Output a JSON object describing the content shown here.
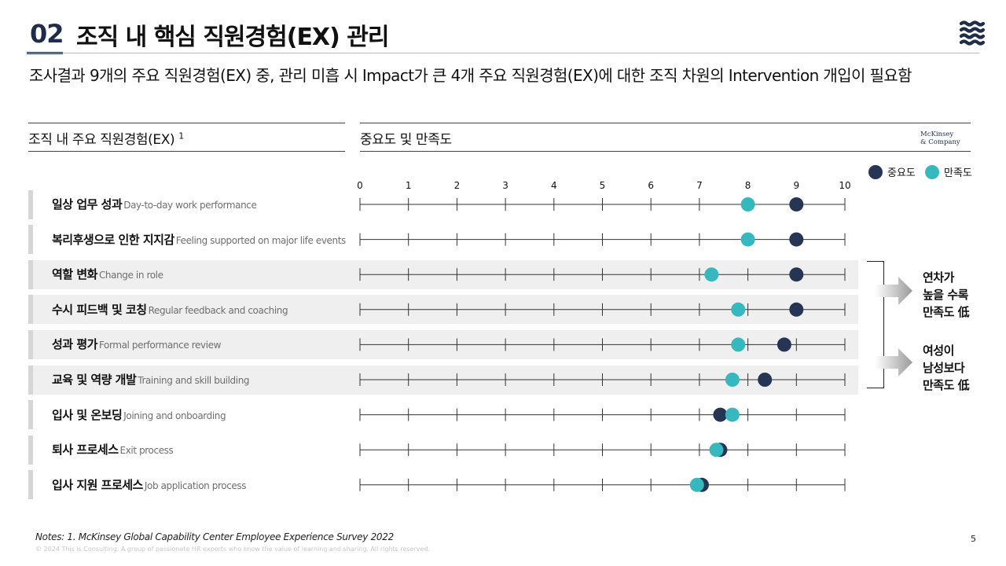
{
  "header": {
    "number": "02",
    "title": "조직 내 핵심 직원경험(EX) 관리",
    "subtitle": "조사결과 9개의 주요 직원경험(EX) 중, 관리 미흡 시 Impact가 큰 4개 주요 직원경험(EX)에 대한 조직 차원의 Intervention 개입이 필요함"
  },
  "columns": {
    "left_heading": "조직 내 주요 직원경험(EX)",
    "left_footnote": "1",
    "right_heading": "중요도 및 만족도",
    "source_logo_line1": "McKinsey",
    "source_logo_line2": "& Company"
  },
  "colors": {
    "importance": "#253553",
    "satisfaction": "#36b8bf",
    "highlight_bg": "#efefef"
  },
  "chart_data": {
    "type": "dot",
    "title": "중요도 및 만족도",
    "xlim": [
      0,
      10
    ],
    "ticks": [
      "0",
      "1",
      "2",
      "3",
      "4",
      "5",
      "6",
      "7",
      "8",
      "9",
      "10"
    ],
    "legend": [
      {
        "name": "중요도",
        "color": "#253553"
      },
      {
        "name": "만족도",
        "color": "#36b8bf"
      }
    ],
    "categories": [
      {
        "ko": "일상 업무 성과",
        "en": "Day-to-day work performance",
        "highlight": false
      },
      {
        "ko": "복리후생으로 인한 지지감",
        "en": "Feeling supported on major life events",
        "highlight": false
      },
      {
        "ko": "역할 변화",
        "en": "Change in role",
        "highlight": true
      },
      {
        "ko": "수시 피드백 및 코칭",
        "en": "Regular feedback and coaching",
        "highlight": true
      },
      {
        "ko": "성과 평가",
        "en": "Formal performance review",
        "highlight": true
      },
      {
        "ko": "교육 및 역량 개발",
        "en": "Training and skill building",
        "highlight": true
      },
      {
        "ko": "입사 및 온보딩",
        "en": "Joining and onboarding",
        "highlight": false
      },
      {
        "ko": "퇴사 프로세스",
        "en": "Exit process",
        "highlight": false
      },
      {
        "ko": "입사 지원 프로세스",
        "en": "Job application process",
        "highlight": false
      }
    ],
    "series": [
      {
        "name": "만족도",
        "values": [
          8.0,
          8.0,
          7.25,
          7.8,
          7.8,
          7.68,
          7.68,
          7.35,
          6.95
        ]
      },
      {
        "name": "중요도",
        "values": [
          9.0,
          9.0,
          9.0,
          9.0,
          8.75,
          8.35,
          7.43,
          7.43,
          7.05
        ]
      }
    ]
  },
  "annotations": {
    "group1": [
      "연차가",
      "높을 수록",
      "만족도 低"
    ],
    "group2": [
      "여성이",
      "남성보다",
      "만족도 低"
    ]
  },
  "footer": {
    "notes": "Notes: 1. McKinsey Global Capability Center Employee Experience Survey 2022",
    "copyright": "© 2024 This is Consulting. A group of passionate HR experts who know the value of learning and sharing. All rights reserved.",
    "page": "5"
  }
}
